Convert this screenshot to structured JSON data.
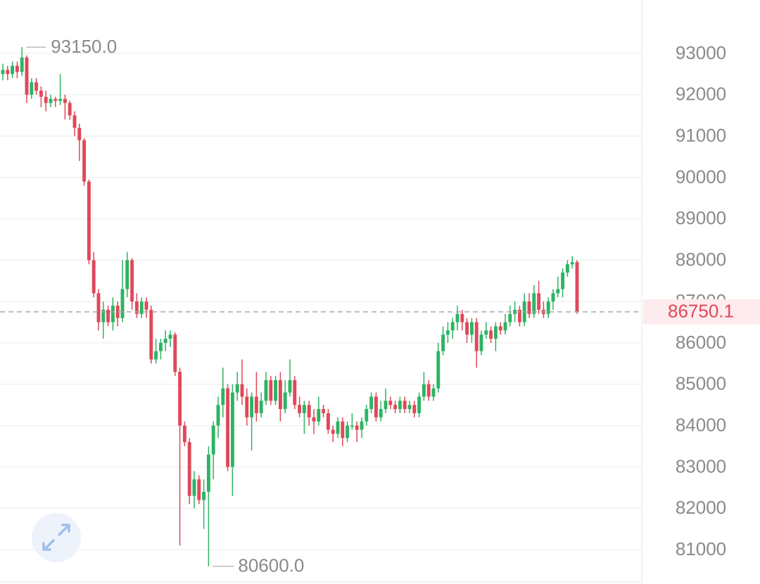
{
  "chart_data": {
    "type": "candlestick",
    "up_color": "#2db463",
    "down_color": "#e0485a",
    "ylim": [
      80170,
      94290
    ],
    "yticks": [
      81000,
      82000,
      83000,
      84000,
      85000,
      86000,
      87000,
      88000,
      89000,
      90000,
      91000,
      92000,
      93000
    ],
    "grid": true,
    "max_marker": {
      "value": 93150,
      "label": "93150.0"
    },
    "min_marker": {
      "value": 80600,
      "label": "80600.0"
    },
    "last_price": {
      "value": 86750.1,
      "label": "86750.1"
    },
    "candles": [
      [
        92500,
        92750,
        92350,
        92600
      ],
      [
        92600,
        92700,
        92350,
        92500
      ],
      [
        92500,
        92800,
        92400,
        92700
      ],
      [
        92700,
        92800,
        92400,
        92550
      ],
      [
        92550,
        93150,
        92450,
        92900
      ],
      [
        92900,
        92950,
        91800,
        92000
      ],
      [
        92000,
        92400,
        91900,
        92300
      ],
      [
        92300,
        92400,
        92000,
        92100
      ],
      [
        92100,
        92200,
        91700,
        91950
      ],
      [
        91950,
        92100,
        91600,
        91800
      ],
      [
        91800,
        92000,
        91700,
        91900
      ],
      [
        91900,
        91950,
        91700,
        91850
      ],
      [
        91850,
        92500,
        91750,
        91900
      ],
      [
        91900,
        92000,
        91400,
        91800
      ],
      [
        91800,
        91850,
        91400,
        91500
      ],
      [
        91500,
        91600,
        91000,
        91200
      ],
      [
        91200,
        91300,
        90400,
        90900
      ],
      [
        90900,
        90950,
        89800,
        89900
      ],
      [
        89900,
        89950,
        87900,
        88000
      ],
      [
        88000,
        88200,
        87100,
        87200
      ],
      [
        87200,
        87300,
        86300,
        86500
      ],
      [
        86500,
        87000,
        86100,
        86800
      ],
      [
        86800,
        86900,
        86400,
        86500
      ],
      [
        86500,
        87100,
        86300,
        86900
      ],
      [
        86900,
        87000,
        86400,
        86600
      ],
      [
        86600,
        88000,
        86500,
        87300
      ],
      [
        87300,
        88200,
        87100,
        88000
      ],
      [
        88000,
        88050,
        86800,
        87000
      ],
      [
        87000,
        87200,
        86600,
        86700
      ],
      [
        86700,
        87100,
        86600,
        87000
      ],
      [
        87000,
        87100,
        86600,
        86800
      ],
      [
        86800,
        86900,
        85500,
        85600
      ],
      [
        85600,
        86100,
        85500,
        85800
      ],
      [
        85800,
        86100,
        85600,
        86000
      ],
      [
        86000,
        86300,
        85800,
        86100
      ],
      [
        86100,
        86300,
        85900,
        86200
      ],
      [
        86200,
        86250,
        85200,
        85300
      ],
      [
        85300,
        85400,
        81100,
        84000
      ],
      [
        84000,
        84100,
        83500,
        83600
      ],
      [
        83600,
        83700,
        82100,
        82300
      ],
      [
        82300,
        82900,
        82000,
        82700
      ],
      [
        82700,
        82800,
        82100,
        82200
      ],
      [
        82200,
        82700,
        81500,
        82400
      ],
      [
        82400,
        83500,
        80600,
        83300
      ],
      [
        83300,
        84100,
        82700,
        84000
      ],
      [
        84000,
        84700,
        83700,
        84500
      ],
      [
        84500,
        85400,
        84200,
        84900
      ],
      [
        84900,
        85000,
        82900,
        83000
      ],
      [
        83000,
        85000,
        82300,
        84800
      ],
      [
        84800,
        85300,
        84600,
        85000
      ],
      [
        85000,
        85600,
        84500,
        84700
      ],
      [
        84700,
        84900,
        84000,
        84200
      ],
      [
        84200,
        84800,
        83400,
        84700
      ],
      [
        84700,
        85300,
        84100,
        84300
      ],
      [
        84300,
        84800,
        84200,
        84600
      ],
      [
        84600,
        85300,
        84500,
        85100
      ],
      [
        85100,
        85200,
        84500,
        84600
      ],
      [
        84600,
        85200,
        84500,
        85100
      ],
      [
        85100,
        85300,
        84100,
        84400
      ],
      [
        84400,
        85100,
        84300,
        84800
      ],
      [
        84800,
        85600,
        84700,
        85100
      ],
      [
        85100,
        85200,
        84400,
        84500
      ],
      [
        84500,
        84700,
        84200,
        84300
      ],
      [
        84300,
        84600,
        83800,
        84500
      ],
      [
        84500,
        84600,
        84000,
        84200
      ],
      [
        84200,
        84400,
        83800,
        84100
      ],
      [
        84100,
        84700,
        84000,
        84400
      ],
      [
        84400,
        84500,
        84200,
        84300
      ],
      [
        84300,
        84400,
        83800,
        83900
      ],
      [
        83900,
        84000,
        83600,
        83800
      ],
      [
        83800,
        84200,
        83700,
        84100
      ],
      [
        84100,
        84200,
        83500,
        83700
      ],
      [
        83700,
        84100,
        83600,
        84000
      ],
      [
        84000,
        84300,
        83900,
        84000
      ],
      [
        84000,
        84100,
        83600,
        83900
      ],
      [
        83900,
        84200,
        83700,
        84100
      ],
      [
        84100,
        84500,
        84000,
        84400
      ],
      [
        84400,
        84800,
        84300,
        84700
      ],
      [
        84700,
        84800,
        84100,
        84200
      ],
      [
        84200,
        84600,
        84100,
        84400
      ],
      [
        84400,
        84900,
        84300,
        84600
      ],
      [
        84600,
        84700,
        84400,
        84500
      ],
      [
        84500,
        84600,
        84300,
        84400
      ],
      [
        84400,
        84700,
        84300,
        84600
      ],
      [
        84600,
        84700,
        84300,
        84400
      ],
      [
        84400,
        84600,
        84300,
        84500
      ],
      [
        84500,
        84600,
        84200,
        84300
      ],
      [
        84300,
        84800,
        84200,
        84700
      ],
      [
        84700,
        85300,
        84600,
        85000
      ],
      [
        85000,
        85100,
        84600,
        84700
      ],
      [
        84700,
        85000,
        84600,
        84900
      ],
      [
        84900,
        86000,
        84800,
        85800
      ],
      [
        85800,
        86400,
        85700,
        86200
      ],
      [
        86200,
        86500,
        86000,
        86300
      ],
      [
        86300,
        86600,
        86100,
        86500
      ],
      [
        86500,
        86900,
        86300,
        86700
      ],
      [
        86700,
        86800,
        86300,
        86500
      ],
      [
        86500,
        86600,
        86000,
        86200
      ],
      [
        86200,
        86600,
        86000,
        86500
      ],
      [
        86500,
        86600,
        85400,
        85800
      ],
      [
        85800,
        86300,
        85700,
        86200
      ],
      [
        86200,
        86500,
        86100,
        86300
      ],
      [
        86300,
        86400,
        86000,
        86100
      ],
      [
        86100,
        86500,
        85800,
        86400
      ],
      [
        86400,
        86500,
        86200,
        86300
      ],
      [
        86300,
        86700,
        86200,
        86500
      ],
      [
        86500,
        86900,
        86400,
        86700
      ],
      [
        86700,
        87000,
        86500,
        86800
      ],
      [
        86800,
        86900,
        86400,
        86500
      ],
      [
        86500,
        87200,
        86400,
        87000
      ],
      [
        87000,
        87200,
        86600,
        86700
      ],
      [
        86700,
        87400,
        86600,
        87200
      ],
      [
        87200,
        87500,
        86700,
        86800
      ],
      [
        86800,
        87000,
        86600,
        86700
      ],
      [
        86700,
        87100,
        86600,
        87000
      ],
      [
        87000,
        87300,
        86800,
        87200
      ],
      [
        87200,
        87600,
        87100,
        87300
      ],
      [
        87300,
        87800,
        87100,
        87700
      ],
      [
        87700,
        88000,
        87600,
        87900
      ],
      [
        87900,
        88100,
        87800,
        87950
      ],
      [
        87950,
        88000,
        86700,
        86750.1
      ]
    ]
  }
}
